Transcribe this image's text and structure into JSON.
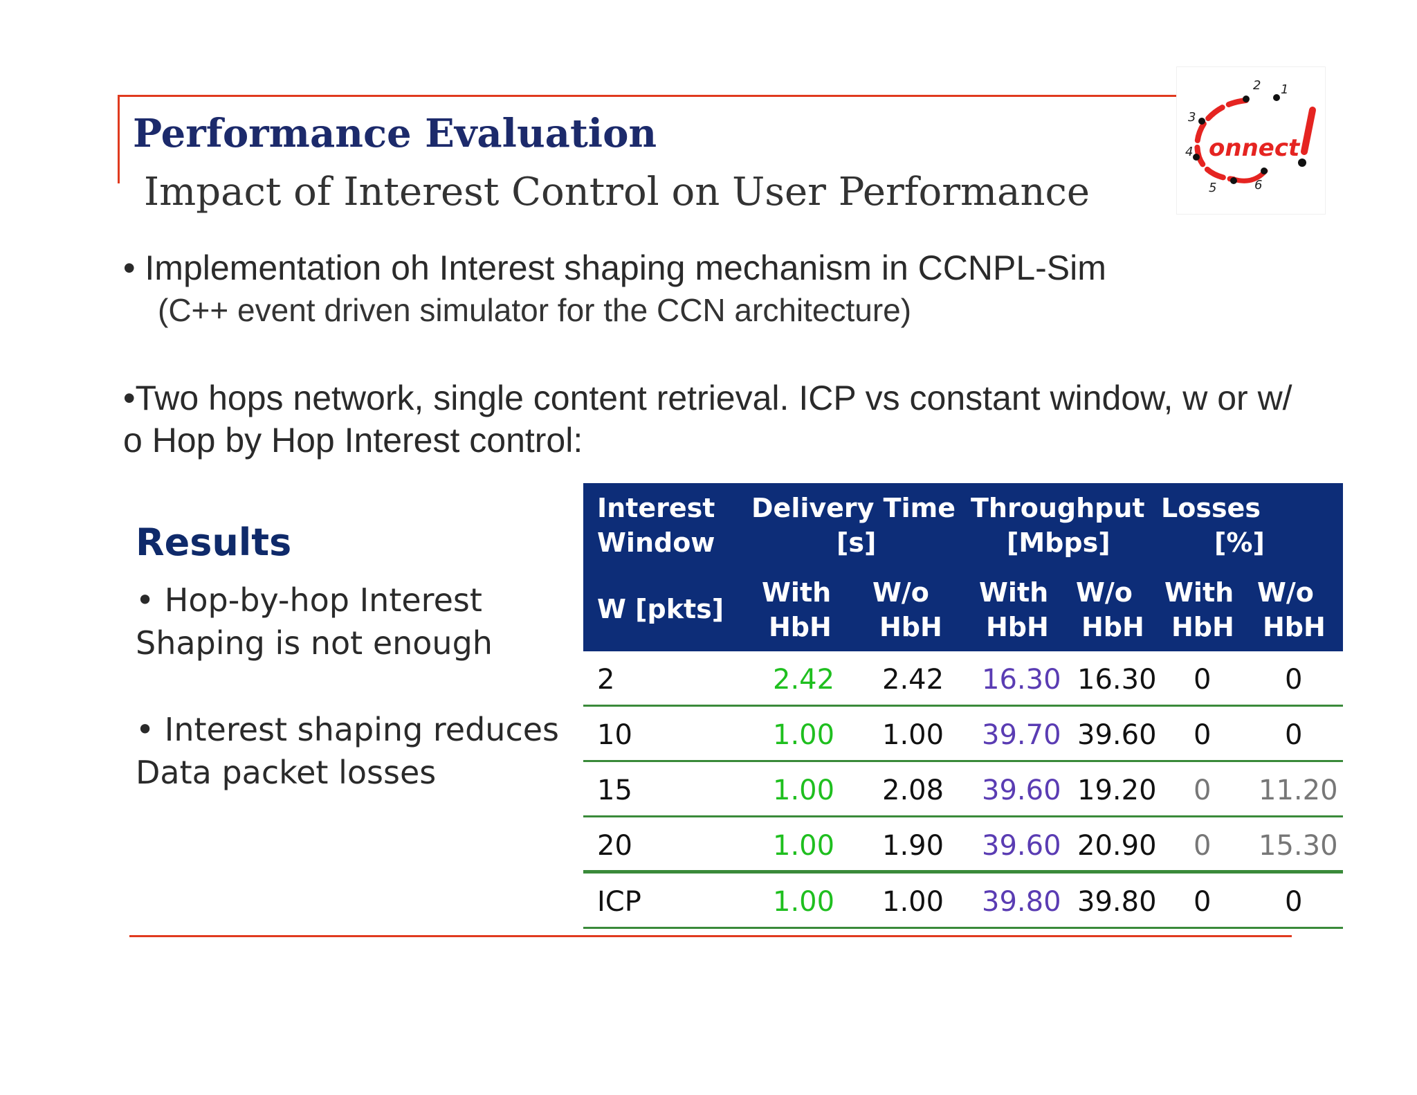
{
  "slide": {
    "title": "Performance Evaluation",
    "subtitle": "Impact of  Interest Control on User Performance",
    "bullet1": "• Implementation oh Interest shaping mechanism in CCNPL-Sim",
    "bullet1_sub": "(C++ event driven simulator for the CCN architecture)",
    "bullet2_line1": "•Two hops network, single content retrieval. ICP vs constant window, w or w/",
    "bullet2_line2": "o Hop by Hop Interest control:"
  },
  "results": {
    "title": "Results",
    "item1_line1": "• Hop-by-hop Interest",
    "item1_line2": "Shaping is not enough",
    "item2_line1": "• Interest shaping reduces",
    "item2_line2": "Data packet losses"
  },
  "logo": {
    "text": "onnect",
    "numbers": [
      "1",
      "2",
      "3",
      "4",
      "5",
      "6"
    ]
  },
  "table": {
    "headers": {
      "interest_window_1": "Interest",
      "interest_window_2": "Window",
      "delivery_1": "Delivery Time",
      "delivery_2": "[s]",
      "throughput_1": "Throughput",
      "throughput_2": "[Mbps]",
      "losses_1": "Losses",
      "losses_2": "[%]",
      "w_pkts": "W [pkts]",
      "with": "With",
      "wo": "W/o",
      "hbh": "HbH"
    },
    "rows": [
      {
        "w": "2",
        "dt_with": "2.42",
        "dt_wo": "2.42",
        "tp_with": "16.30",
        "tp_wo": "16.30",
        "l_with": "0",
        "l_wo": "0"
      },
      {
        "w": "10",
        "dt_with": "1.00",
        "dt_wo": "1.00",
        "tp_with": "39.70",
        "tp_wo": "39.60",
        "l_with": "0",
        "l_wo": "0"
      },
      {
        "w": "15",
        "dt_with": "1.00",
        "dt_wo": "2.08",
        "tp_with": "39.60",
        "tp_wo": "19.20",
        "l_with": "0",
        "l_wo": "11.20"
      },
      {
        "w": "20",
        "dt_with": "1.00",
        "dt_wo": "1.90",
        "tp_with": "39.60",
        "tp_wo": "20.90",
        "l_with": "0",
        "l_wo": "15.30"
      },
      {
        "w": "ICP",
        "dt_with": "1.00",
        "dt_wo": "1.00",
        "tp_with": "39.80",
        "tp_wo": "39.80",
        "l_with": "0",
        "l_wo": "0"
      }
    ]
  },
  "colors": {
    "accent_rule": "#e03a1f",
    "header_bg": "#0d2d78",
    "with_delivery": "#1fbf1f",
    "with_throughput": "#5a3cb3",
    "row_rule": "#3a8a3a"
  }
}
